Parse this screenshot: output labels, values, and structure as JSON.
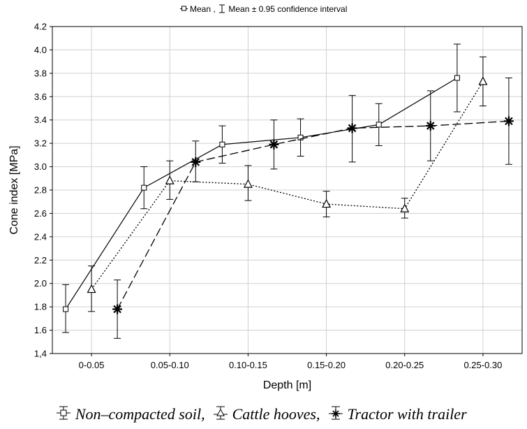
{
  "top_legend": {
    "mean_label": "Mean ,",
    "ci_label": "Mean ± 0.95 confidence interval"
  },
  "bottom_legend": {
    "items": [
      {
        "label": "Non–compacted soil,",
        "marker": "square"
      },
      {
        "label": "Cattle hooves,",
        "marker": "triangle"
      },
      {
        "label": "Tractor with trailer",
        "marker": "asterisk"
      }
    ]
  },
  "chart_data": {
    "type": "line",
    "xlabel": "Depth [m]",
    "ylabel": "Cone index [MPa]",
    "categories": [
      "0-0.05",
      "0.05-0.10",
      "0.10-0.15",
      "0.15-0.20",
      "0.20-0.25",
      "0.25-0.30"
    ],
    "ylim": [
      1.4,
      4.2
    ],
    "yticks": [
      "1,4",
      "1.6",
      "1.8",
      "2.0",
      "2.2",
      "2.4",
      "2.6",
      "2.8",
      "3.0",
      "3.2",
      "3.4",
      "3.6",
      "3.8",
      "4.0",
      "4.2"
    ],
    "grid": true,
    "series": [
      {
        "name": "Non–compacted soil",
        "marker": "square",
        "line_style": "solid",
        "values": [
          1.78,
          2.82,
          3.19,
          3.25,
          3.36,
          3.76
        ],
        "ci_low": [
          1.58,
          2.64,
          3.03,
          3.09,
          3.18,
          3.47
        ],
        "ci_high": [
          1.99,
          3.0,
          3.35,
          3.41,
          3.54,
          4.05
        ]
      },
      {
        "name": "Cattle hooves",
        "marker": "triangle",
        "line_style": "dotted",
        "values": [
          1.95,
          2.88,
          2.85,
          2.68,
          2.64,
          3.73
        ],
        "ci_low": [
          1.76,
          2.72,
          2.71,
          2.57,
          2.56,
          3.52
        ],
        "ci_high": [
          2.15,
          3.05,
          3.01,
          2.79,
          2.73,
          3.94
        ]
      },
      {
        "name": "Tractor with trailer",
        "marker": "asterisk",
        "line_style": "dashed",
        "values": [
          1.78,
          3.04,
          3.19,
          3.33,
          3.35,
          3.39
        ],
        "ci_low": [
          1.53,
          2.87,
          2.98,
          3.04,
          3.05,
          3.02
        ],
        "ci_high": [
          2.03,
          3.22,
          3.4,
          3.61,
          3.65,
          3.76
        ]
      }
    ]
  }
}
